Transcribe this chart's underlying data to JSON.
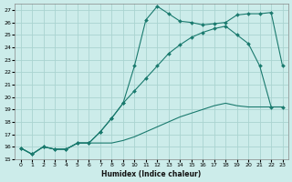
{
  "xlabel": "Humidex (Indice chaleur)",
  "bg_color": "#ccecea",
  "grid_color": "#aad4d0",
  "line_color": "#1a7a6e",
  "xlim": [
    -0.5,
    23.5
  ],
  "ylim": [
    15,
    27.5
  ],
  "xticks": [
    0,
    1,
    2,
    3,
    4,
    5,
    6,
    7,
    8,
    9,
    10,
    11,
    12,
    13,
    14,
    15,
    16,
    17,
    18,
    19,
    20,
    21,
    22,
    23
  ],
  "yticks": [
    15,
    16,
    17,
    18,
    19,
    20,
    21,
    22,
    23,
    24,
    25,
    26,
    27
  ],
  "line_peak_x": [
    0,
    1,
    2,
    3,
    4,
    5,
    6,
    7,
    8,
    9,
    10,
    11,
    12,
    13,
    14,
    15,
    16,
    17,
    18,
    19,
    20,
    21,
    22,
    23
  ],
  "line_peak_y": [
    15.9,
    15.4,
    16.0,
    15.8,
    15.8,
    16.3,
    16.3,
    17.2,
    18.3,
    19.5,
    22.5,
    26.2,
    27.3,
    26.7,
    26.1,
    26.0,
    25.8,
    25.9,
    26.0,
    26.6,
    26.7,
    26.7,
    26.8,
    22.5
  ],
  "line_mid_x": [
    0,
    1,
    2,
    3,
    4,
    5,
    6,
    7,
    8,
    9,
    10,
    11,
    12,
    13,
    14,
    15,
    16,
    17,
    18,
    19,
    20,
    21,
    22,
    23
  ],
  "line_mid_y": [
    15.9,
    15.4,
    16.0,
    15.8,
    15.8,
    16.3,
    16.3,
    17.2,
    18.3,
    19.5,
    20.5,
    21.5,
    22.5,
    23.5,
    24.2,
    24.8,
    25.2,
    25.5,
    25.7,
    25.0,
    24.3,
    22.5,
    19.2,
    19.2
  ],
  "line_bot_x": [
    0,
    1,
    2,
    3,
    4,
    5,
    6,
    7,
    8,
    9,
    10,
    11,
    12,
    13,
    14,
    15,
    16,
    17,
    18,
    19,
    20,
    21,
    22,
    23
  ],
  "line_bot_y": [
    15.9,
    15.4,
    16.0,
    15.8,
    15.8,
    16.3,
    16.3,
    16.3,
    16.3,
    16.5,
    16.8,
    17.2,
    17.6,
    18.0,
    18.4,
    18.7,
    19.0,
    19.3,
    19.5,
    19.3,
    19.2,
    19.2,
    19.2,
    19.2
  ]
}
